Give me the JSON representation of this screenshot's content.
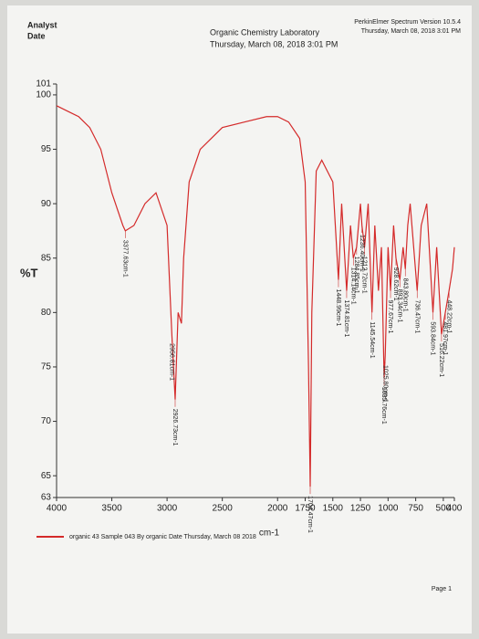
{
  "chart_data": {
    "type": "line",
    "header": {
      "analyst": "Analyst",
      "date": "Date",
      "lab": "Organic Chemistry Laboratory",
      "datetime": "Thursday, March 08, 2018 3:01 PM",
      "software": "PerkinElmer Spectrum Version 10.5.4",
      "software_date": "Thursday, March 08, 2018 3:01 PM"
    },
    "ylabel": "%T",
    "xlabel": "cm-1",
    "page": "Page 1",
    "xlim": [
      4000,
      400
    ],
    "ylim": [
      63,
      101
    ],
    "xticks": [
      4000,
      3500,
      3000,
      2500,
      2000,
      1750,
      1500,
      1250,
      1000,
      750,
      500,
      400
    ],
    "yticks": [
      63,
      65,
      70,
      75,
      80,
      85,
      90,
      95,
      100,
      101
    ],
    "x": [
      4000,
      3900,
      3800,
      3700,
      3600,
      3500,
      3400,
      3377.63,
      3300,
      3200,
      3100,
      3000,
      2956.81,
      2926.73,
      2900,
      2870,
      2850,
      2800,
      2700,
      2500,
      2300,
      2100,
      2000,
      1900,
      1800,
      1750,
      1720,
      1704.47,
      1690,
      1650,
      1600,
      1500,
      1448.99,
      1420,
      1374.81,
      1340,
      1314.14,
      1284.85,
      1250,
      1236.4,
      1212.72,
      1180,
      1145.54,
      1120,
      1087,
      1060,
      1035.76,
      1025.8,
      1000,
      977.67,
      950,
      928.62,
      893.34,
      864,
      843.8,
      822,
      800,
      736.47,
      700,
      650,
      593.84,
      560,
      516.22,
      481.97,
      448.22,
      416.76,
      400
    ],
    "series": [
      {
        "name": "organic 43  Sample 043 By organic Date Thursday, March 08 2018",
        "color": "#d42a2a",
        "values": [
          99,
          98.5,
          98,
          97,
          95,
          91,
          88,
          87.5,
          88,
          90,
          91,
          88,
          78,
          72,
          80,
          79,
          85,
          92,
          95,
          97,
          97.5,
          98,
          98,
          97.5,
          96,
          92,
          75,
          64,
          80,
          93,
          94,
          92,
          83,
          90,
          82,
          88,
          85,
          86,
          90,
          88,
          86,
          90,
          80,
          88,
          82,
          86,
          74,
          76,
          86,
          82,
          88,
          85,
          83,
          86,
          84,
          88,
          90,
          82,
          88,
          90,
          80,
          86,
          78,
          80,
          82,
          84,
          86
        ]
      }
    ],
    "annotations": [
      {
        "x": 3377.63,
        "y": 87.5,
        "label": "3377.63cm-1"
      },
      {
        "x": 2956.81,
        "y": 78,
        "label": "2956.81cm-1"
      },
      {
        "x": 2926.73,
        "y": 72,
        "label": "2926.73cm-1"
      },
      {
        "x": 1704.47,
        "y": 64,
        "label": "1704.47cm-1"
      },
      {
        "x": 1448.99,
        "y": 83,
        "label": "1448.99cm-1"
      },
      {
        "x": 1374.81,
        "y": 82,
        "label": "1374.81cm-1"
      },
      {
        "x": 1314.14,
        "y": 85,
        "label": "1314.14cm-1"
      },
      {
        "x": 1284.85,
        "y": 86,
        "label": "1284.85cm-1"
      },
      {
        "x": 1236.4,
        "y": 88,
        "label": "1236.40cm-1"
      },
      {
        "x": 1212.72,
        "y": 86,
        "label": "1212.72cm-1"
      },
      {
        "x": 1145.54,
        "y": 80,
        "label": "1145.54cm-1"
      },
      {
        "x": 1035.76,
        "y": 74,
        "label": "1035.76cm-1"
      },
      {
        "x": 1025.8,
        "y": 76,
        "label": "1025.80cm-1"
      },
      {
        "x": 977.67,
        "y": 82,
        "label": "977.67cm-1"
      },
      {
        "x": 928.62,
        "y": 85,
        "label": "928.62cm-1"
      },
      {
        "x": 893.34,
        "y": 83,
        "label": "893.34cm-1"
      },
      {
        "x": 843.8,
        "y": 84,
        "label": "843.80cm-1"
      },
      {
        "x": 736.47,
        "y": 82,
        "label": "736.47cm-1"
      },
      {
        "x": 593.84,
        "y": 80,
        "label": "593.84cm-1"
      },
      {
        "x": 516.22,
        "y": 78,
        "label": "516.22cm-1"
      },
      {
        "x": 481.97,
        "y": 80,
        "label": "481.97cm-1"
      },
      {
        "x": 448.22,
        "y": 82,
        "label": "448.22cm-1"
      }
    ]
  }
}
